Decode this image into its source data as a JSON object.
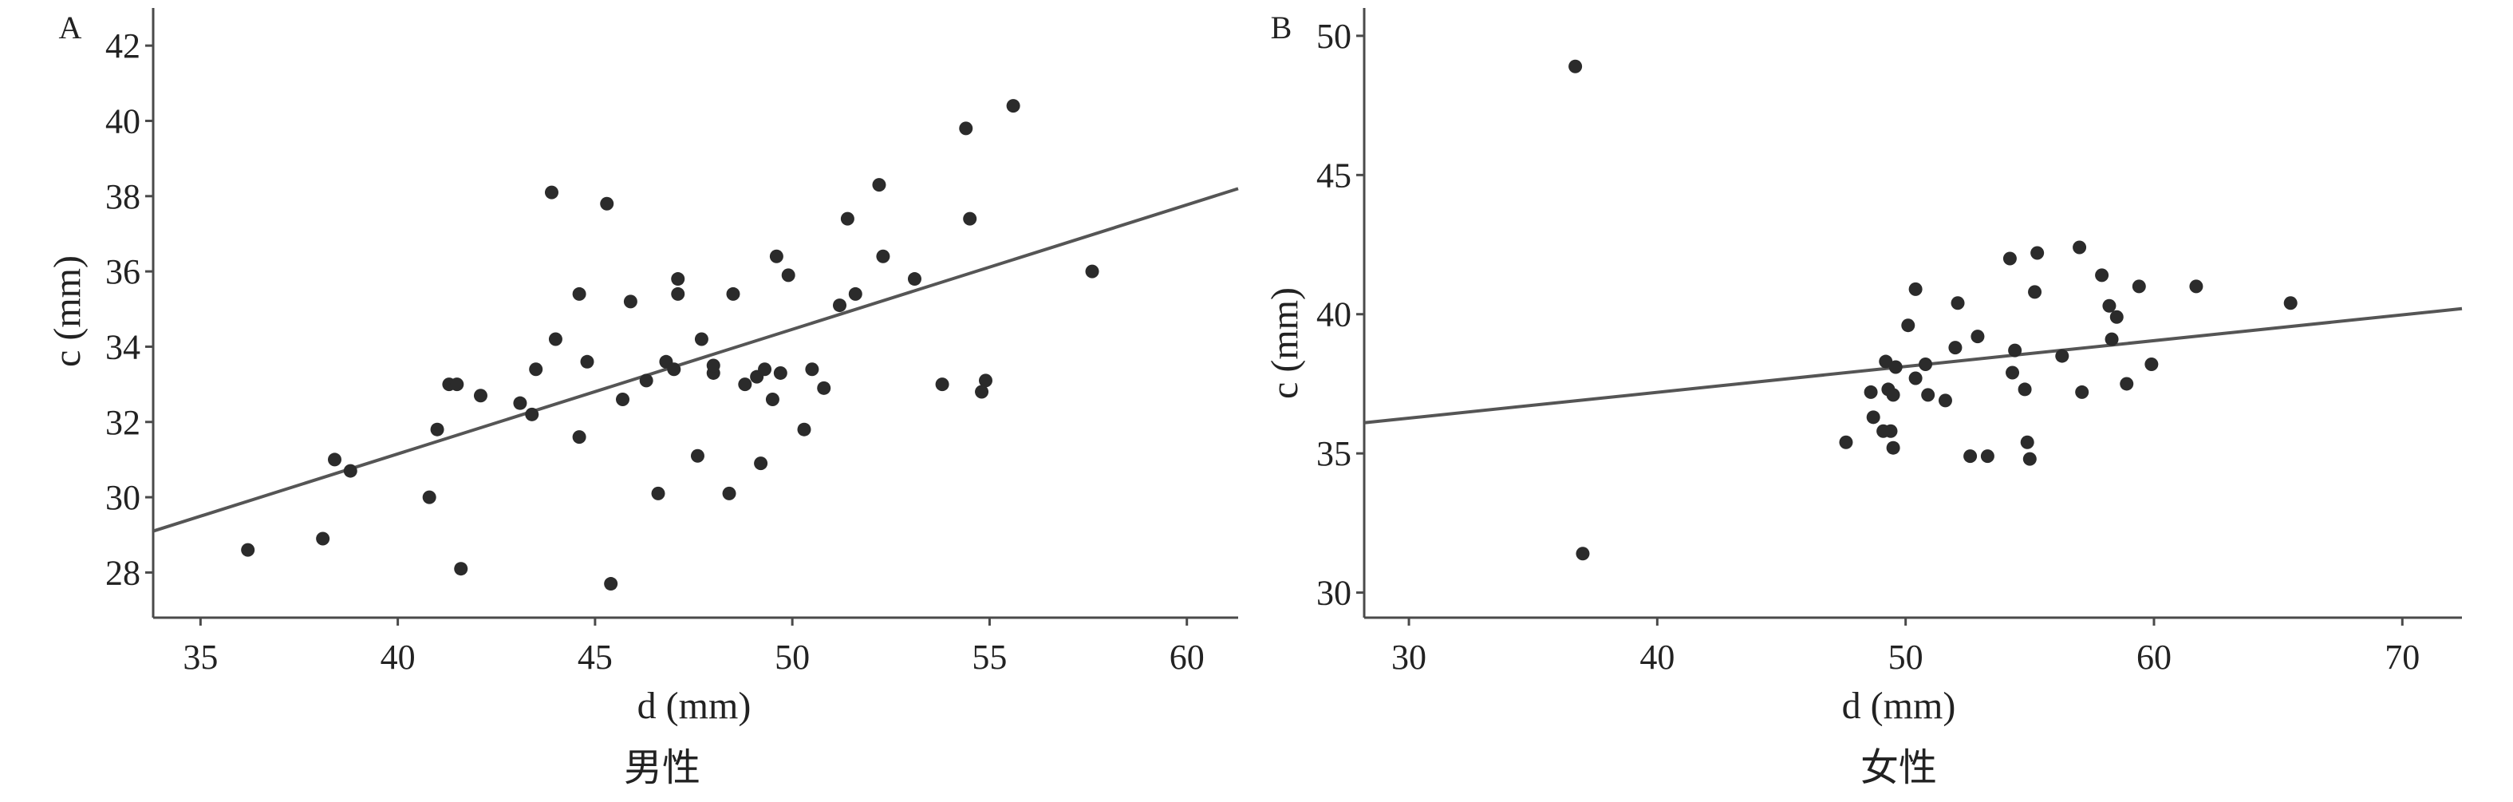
{
  "colors": {
    "axis": "#4a4a4a",
    "point": "#2b2b2b",
    "fit_line": "#555555",
    "background": "#ffffff"
  },
  "chart_data": [
    {
      "type": "scatter",
      "panel_label": "A",
      "caption": "男性",
      "xlabel": "d (mm)",
      "ylabel": "c (mm)",
      "xlim": [
        33.8,
        61.3
      ],
      "ylim": [
        26.8,
        43.0
      ],
      "xticks": [
        35,
        40,
        45,
        50,
        55,
        60
      ],
      "yticks": [
        28,
        30,
        32,
        34,
        36,
        38,
        40,
        42
      ],
      "grid": false,
      "fit_line": {
        "x": [
          33.8,
          61.3
        ],
        "y": [
          29.1,
          38.2
        ]
      },
      "points": [
        [
          36.2,
          28.6
        ],
        [
          38.1,
          28.9
        ],
        [
          38.4,
          31.0
        ],
        [
          38.8,
          30.7
        ],
        [
          40.8,
          30.0
        ],
        [
          41.0,
          31.8
        ],
        [
          41.3,
          33.0
        ],
        [
          41.5,
          33.0
        ],
        [
          41.6,
          28.1
        ],
        [
          42.1,
          32.7
        ],
        [
          43.1,
          32.5
        ],
        [
          43.4,
          32.2
        ],
        [
          43.5,
          33.4
        ],
        [
          43.9,
          38.1
        ],
        [
          44.0,
          34.2
        ],
        [
          44.6,
          31.6
        ],
        [
          44.6,
          35.4
        ],
        [
          44.8,
          33.6
        ],
        [
          45.3,
          37.8
        ],
        [
          45.4,
          27.7
        ],
        [
          45.7,
          32.6
        ],
        [
          45.9,
          35.2
        ],
        [
          46.3,
          33.1
        ],
        [
          46.6,
          30.1
        ],
        [
          46.8,
          33.6
        ],
        [
          47.0,
          33.4
        ],
        [
          47.1,
          35.8
        ],
        [
          47.1,
          35.4
        ],
        [
          47.6,
          31.1
        ],
        [
          47.7,
          34.2
        ],
        [
          48.0,
          33.3
        ],
        [
          48.0,
          33.5
        ],
        [
          48.4,
          30.1
        ],
        [
          48.5,
          35.4
        ],
        [
          48.8,
          33.0
        ],
        [
          49.1,
          33.2
        ],
        [
          49.2,
          30.9
        ],
        [
          49.3,
          33.4
        ],
        [
          49.5,
          32.6
        ],
        [
          49.6,
          36.4
        ],
        [
          49.7,
          33.3
        ],
        [
          49.9,
          35.9
        ],
        [
          50.3,
          31.8
        ],
        [
          50.5,
          33.4
        ],
        [
          50.8,
          32.9
        ],
        [
          51.2,
          35.1
        ],
        [
          51.4,
          37.4
        ],
        [
          51.6,
          35.4
        ],
        [
          52.2,
          38.3
        ],
        [
          52.3,
          36.4
        ],
        [
          53.1,
          35.8
        ],
        [
          53.8,
          33.0
        ],
        [
          54.4,
          39.8
        ],
        [
          54.5,
          37.4
        ],
        [
          54.8,
          32.8
        ],
        [
          54.9,
          33.1
        ],
        [
          55.6,
          40.4
        ],
        [
          57.6,
          36.0
        ]
      ]
    },
    {
      "type": "scatter",
      "panel_label": "B",
      "caption": "女性",
      "xlabel": "d (mm)",
      "ylabel": "c (mm)",
      "xlim": [
        28.2,
        72.4
      ],
      "ylim": [
        29.1,
        51.0
      ],
      "xticks": [
        30,
        40,
        50,
        60,
        70
      ],
      "yticks": [
        30,
        35,
        40,
        45,
        50
      ],
      "grid": false,
      "fit_line": {
        "x": [
          28.2,
          72.4
        ],
        "y": [
          36.1,
          40.2
        ]
      },
      "points": [
        [
          36.7,
          48.9
        ],
        [
          37.0,
          31.4
        ],
        [
          47.6,
          35.4
        ],
        [
          48.6,
          37.2
        ],
        [
          48.7,
          36.3
        ],
        [
          49.1,
          35.8
        ],
        [
          49.2,
          38.3
        ],
        [
          49.3,
          37.3
        ],
        [
          49.4,
          35.8
        ],
        [
          49.5,
          37.1
        ],
        [
          49.5,
          35.2
        ],
        [
          49.6,
          38.1
        ],
        [
          50.1,
          39.6
        ],
        [
          50.4,
          37.7
        ],
        [
          50.4,
          40.9
        ],
        [
          50.8,
          38.2
        ],
        [
          50.9,
          37.1
        ],
        [
          51.6,
          36.9
        ],
        [
          52.0,
          38.8
        ],
        [
          52.1,
          40.4
        ],
        [
          52.6,
          34.9
        ],
        [
          52.9,
          39.2
        ],
        [
          53.3,
          34.9
        ],
        [
          54.2,
          42.0
        ],
        [
          54.3,
          37.9
        ],
        [
          54.4,
          38.7
        ],
        [
          54.8,
          37.3
        ],
        [
          54.9,
          35.4
        ],
        [
          55.0,
          34.8
        ],
        [
          55.2,
          40.8
        ],
        [
          55.3,
          42.2
        ],
        [
          56.3,
          38.5
        ],
        [
          57.0,
          42.4
        ],
        [
          57.1,
          37.2
        ],
        [
          57.9,
          41.4
        ],
        [
          58.2,
          40.3
        ],
        [
          58.3,
          39.1
        ],
        [
          58.5,
          39.9
        ],
        [
          58.9,
          37.5
        ],
        [
          59.4,
          41.0
        ],
        [
          59.9,
          38.2
        ],
        [
          61.7,
          41.0
        ],
        [
          65.5,
          40.4
        ]
      ]
    }
  ]
}
